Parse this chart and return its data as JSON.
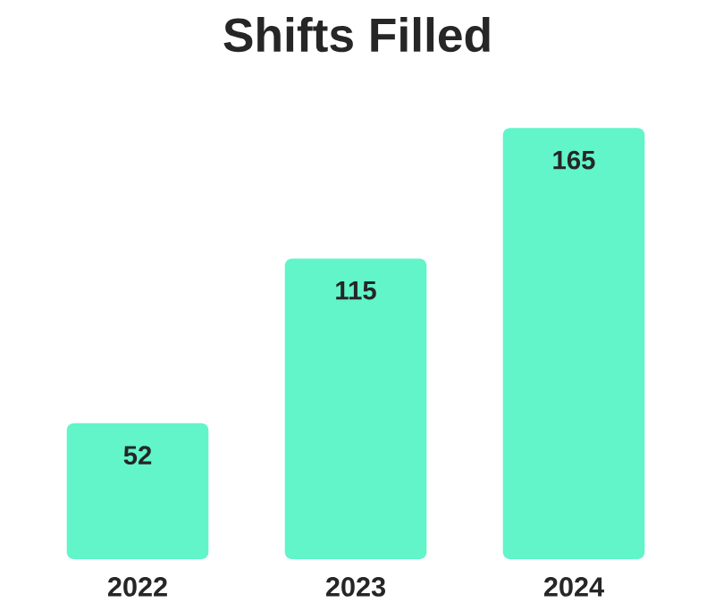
{
  "chart_data": {
    "type": "bar",
    "title": "Shifts Filled",
    "categories": [
      "2022",
      "2023",
      "2024"
    ],
    "values": [
      52,
      115,
      165
    ],
    "color": "#61f5c9",
    "data_labels": true
  }
}
